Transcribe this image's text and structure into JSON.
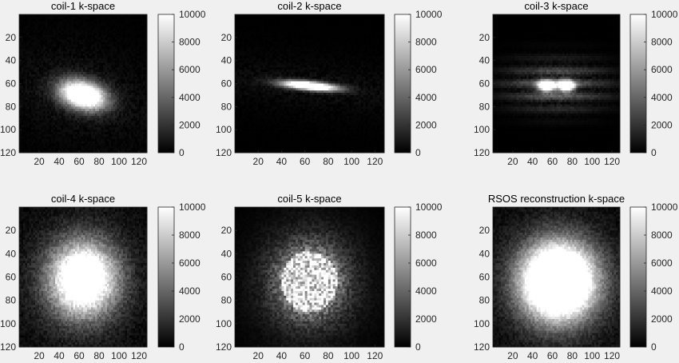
{
  "figure": {
    "background": "#f0f0f0",
    "colormap": "gray",
    "layout": "2 rows x 3 columns"
  },
  "chart_data": [
    {
      "type": "heatmap",
      "title": "coil-1 k-space",
      "xticks": [
        20,
        40,
        60,
        80,
        100,
        120
      ],
      "yticks": [
        20,
        40,
        60,
        80,
        100,
        120
      ],
      "xlim": [
        0,
        128
      ],
      "ylim": [
        0,
        120
      ],
      "colorbar": {
        "ticks": [
          0,
          2000,
          4000,
          6000,
          8000,
          10000
        ],
        "range": [
          0,
          10000
        ]
      },
      "pattern": {
        "shape": "bright irregular blob, diagonal",
        "center": [
          64,
          70
        ],
        "spread": [
          30,
          18
        ],
        "peak_intensity": 10000
      }
    },
    {
      "type": "heatmap",
      "title": "coil-2 k-space",
      "xticks": [
        20,
        40,
        60,
        80,
        100,
        120
      ],
      "yticks": [
        20,
        40,
        60,
        80,
        100,
        120
      ],
      "xlim": [
        0,
        128
      ],
      "ylim": [
        0,
        120
      ],
      "colorbar": {
        "ticks": [
          0,
          2000,
          4000,
          6000,
          8000,
          10000
        ],
        "range": [
          0,
          10000
        ]
      },
      "pattern": {
        "shape": "thin diagonal streak",
        "center": [
          64,
          62
        ],
        "spread": [
          20,
          6
        ],
        "peak_intensity": 10000
      }
    },
    {
      "type": "heatmap",
      "title": "coil-3 k-space",
      "xticks": [
        20,
        40,
        60,
        80,
        100,
        120
      ],
      "yticks": [
        20,
        40,
        60,
        80,
        100,
        120
      ],
      "xlim": [
        0,
        128
      ],
      "ylim": [
        0,
        120
      ],
      "colorbar": {
        "ticks": [
          0,
          2000,
          4000,
          6000,
          8000,
          10000
        ],
        "range": [
          0,
          10000
        ]
      },
      "pattern": {
        "shape": "bow-tie with faint horizontal stripes",
        "center": [
          64,
          62
        ],
        "spread": [
          14,
          8
        ],
        "peak_intensity": 10000
      }
    },
    {
      "type": "heatmap",
      "title": "coil-4 k-space",
      "xticks": [
        20,
        40,
        60,
        80,
        100,
        120
      ],
      "yticks": [
        20,
        40,
        60,
        80,
        100,
        120
      ],
      "xlim": [
        0,
        128
      ],
      "ylim": [
        0,
        120
      ],
      "colorbar": {
        "ticks": [
          0,
          2000,
          4000,
          6000,
          8000,
          10000
        ],
        "range": [
          0,
          10000
        ]
      },
      "pattern": {
        "shape": "large diffuse cloud",
        "center": [
          64,
          62
        ],
        "spread": [
          34,
          32
        ],
        "peak_intensity": 10000
      }
    },
    {
      "type": "heatmap",
      "title": "coil-5 k-space",
      "xticks": [
        20,
        40,
        60,
        80,
        100,
        120
      ],
      "yticks": [
        20,
        40,
        60,
        80,
        100,
        120
      ],
      "xlim": [
        0,
        128
      ],
      "ylim": [
        0,
        120
      ],
      "colorbar": {
        "ticks": [
          0,
          2000,
          4000,
          6000,
          8000,
          10000
        ],
        "range": [
          0,
          10000
        ]
      },
      "pattern": {
        "shape": "round noisy disc",
        "center": [
          64,
          64
        ],
        "spread": [
          24,
          26
        ],
        "peak_intensity": 10000
      }
    },
    {
      "type": "heatmap",
      "title": "RSOS reconstruction k-space",
      "xticks": [
        20,
        40,
        60,
        80,
        100,
        120
      ],
      "yticks": [
        20,
        40,
        60,
        80,
        100,
        120
      ],
      "xlim": [
        0,
        128
      ],
      "ylim": [
        0,
        120
      ],
      "colorbar": {
        "ticks": [
          0,
          2000,
          4000,
          6000,
          8000,
          10000
        ],
        "range": [
          0,
          10000
        ]
      },
      "pattern": {
        "shape": "large saturated blob",
        "center": [
          66,
          64
        ],
        "spread": [
          34,
          30
        ],
        "peak_intensity": 10000
      }
    }
  ]
}
